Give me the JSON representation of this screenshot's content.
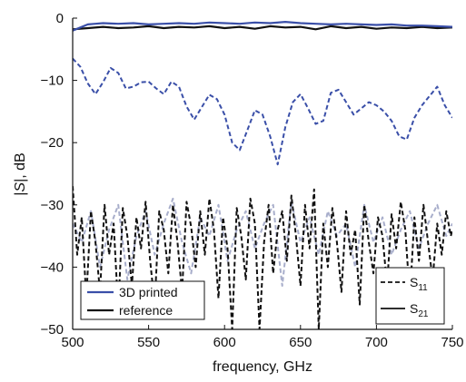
{
  "chart_data": {
    "type": "line",
    "xlabel": "frequency, GHz",
    "ylabel_parts": [
      "|",
      "S",
      "|, dB"
    ],
    "xlim": [
      500,
      750
    ],
    "ylim": [
      -50,
      0
    ],
    "x_ticks": [
      "500",
      "550",
      "600",
      "650",
      "700",
      "750"
    ],
    "x_tick_values": [
      500,
      550,
      600,
      650,
      700,
      750
    ],
    "y_ticks": [
      "0",
      "−10",
      "−20",
      "−30",
      "−40",
      "−50"
    ],
    "y_tick_values": [
      0,
      -10,
      -20,
      -30,
      -40,
      -50
    ],
    "grid": false,
    "colors": {
      "printed": "#3a4fa8",
      "reference": "#111111",
      "printed_s11_light": "#a8aecb",
      "reference_s11_light": "#9a9a9a"
    },
    "legend_color": {
      "placement": "bottom-left",
      "entries": [
        {
          "label": "3D printed",
          "color": "#3a4fa8"
        },
        {
          "label": "reference",
          "color": "#111111"
        }
      ]
    },
    "legend_style": {
      "placement": "bottom-right",
      "entries": [
        {
          "label": "S",
          "sub": "11",
          "dash": "dashed"
        },
        {
          "label": "S",
          "sub": "21",
          "dash": "solid"
        }
      ]
    },
    "series": [
      {
        "name": "3D printed S21",
        "color": "#3a4fa8",
        "dash": "solid",
        "x": [
          500,
          505,
          510,
          515,
          520,
          530,
          540,
          550,
          560,
          570,
          580,
          590,
          600,
          610,
          620,
          630,
          640,
          650,
          660,
          670,
          680,
          690,
          700,
          710,
          720,
          730,
          740,
          750
        ],
        "y": [
          -2.0,
          -1.5,
          -1.0,
          -0.9,
          -0.8,
          -0.9,
          -0.8,
          -1.0,
          -0.9,
          -0.8,
          -0.9,
          -0.7,
          -0.8,
          -0.9,
          -0.7,
          -0.8,
          -0.6,
          -0.8,
          -0.9,
          -1.0,
          -0.9,
          -1.0,
          -1.1,
          -1.0,
          -1.2,
          -1.2,
          -1.3,
          -1.4
        ]
      },
      {
        "name": "reference S21",
        "color": "#111111",
        "dash": "solid",
        "x": [
          500,
          510,
          520,
          530,
          540,
          550,
          560,
          570,
          580,
          590,
          600,
          610,
          620,
          630,
          640,
          650,
          660,
          670,
          680,
          690,
          700,
          710,
          720,
          730,
          740,
          750
        ],
        "y": [
          -1.8,
          -1.6,
          -1.4,
          -1.6,
          -1.5,
          -1.3,
          -1.6,
          -1.4,
          -1.5,
          -1.3,
          -1.6,
          -1.4,
          -1.7,
          -1.3,
          -1.5,
          -1.4,
          -1.8,
          -1.3,
          -1.6,
          -1.4,
          -1.7,
          -1.5,
          -1.6,
          -1.4,
          -1.6,
          -1.5
        ]
      },
      {
        "name": "3D printed S11",
        "color": "#3a4fa8",
        "dash": "dashed",
        "x": [
          500,
          505,
          510,
          515,
          520,
          525,
          530,
          535,
          540,
          545,
          550,
          555,
          560,
          565,
          570,
          575,
          580,
          585,
          590,
          595,
          600,
          605,
          610,
          615,
          620,
          625,
          630,
          635,
          640,
          645,
          650,
          655,
          660,
          665,
          670,
          675,
          680,
          685,
          690,
          695,
          700,
          705,
          710,
          715,
          720,
          725,
          730,
          735,
          740,
          745,
          750
        ],
        "y": [
          -6.5,
          -7.8,
          -10.5,
          -12.2,
          -10.3,
          -8.0,
          -8.8,
          -11.3,
          -11.0,
          -10.3,
          -10.2,
          -11.3,
          -12.2,
          -10.2,
          -11.0,
          -14.2,
          -16.3,
          -14.3,
          -12.3,
          -13.0,
          -15.5,
          -20.0,
          -21.2,
          -18.0,
          -14.8,
          -15.5,
          -19.0,
          -23.5,
          -17.5,
          -13.5,
          -12.2,
          -14.5,
          -17.0,
          -16.5,
          -12.0,
          -11.5,
          -13.5,
          -15.5,
          -14.5,
          -13.5,
          -14.0,
          -15.0,
          -16.5,
          -19.0,
          -19.5,
          -16.0,
          -14.0,
          -12.5,
          -11.0,
          -14.0,
          -16.0
        ]
      },
      {
        "name": "reference S11",
        "color": "#111111",
        "dash": "dashed",
        "x": [
          500,
          503,
          506,
          509,
          512,
          515,
          518,
          521,
          524,
          527,
          530,
          533,
          536,
          539,
          542,
          545,
          548,
          551,
          554,
          557,
          560,
          563,
          566,
          569,
          572,
          575,
          578,
          581,
          584,
          587,
          590,
          593,
          596,
          599,
          602,
          605,
          608,
          611,
          614,
          617,
          620,
          623,
          626,
          629,
          632,
          635,
          638,
          641,
          644,
          647,
          650,
          653,
          656,
          659,
          662,
          665,
          668,
          671,
          674,
          677,
          680,
          683,
          686,
          689,
          692,
          695,
          698,
          701,
          704,
          707,
          710,
          713,
          716,
          719,
          722,
          725,
          728,
          731,
          734,
          737,
          740,
          743,
          746,
          749,
          750
        ],
        "y": [
          -27.0,
          -38.0,
          -32.0,
          -45.0,
          -31.0,
          -36.0,
          -44.0,
          -30.0,
          -38.0,
          -33.0,
          -47.0,
          -30.5,
          -35.0,
          -43.0,
          -32.0,
          -37.0,
          -29.5,
          -39.0,
          -46.0,
          -31.0,
          -34.0,
          -41.0,
          -30.0,
          -36.0,
          -44.0,
          -29.5,
          -33.5,
          -40.0,
          -31.0,
          -38.0,
          -29.0,
          -34.0,
          -45.0,
          -32.0,
          -37.0,
          -50.0,
          -30.5,
          -35.0,
          -42.0,
          -29.0,
          -33.0,
          -50.0,
          -36.0,
          -30.0,
          -41.0,
          -34.0,
          -31.0,
          -39.0,
          -28.5,
          -35.0,
          -43.0,
          -30.0,
          -37.0,
          -27.5,
          -50.0,
          -33.0,
          -40.0,
          -30.5,
          -36.0,
          -44.0,
          -31.0,
          -38.0,
          -34.0,
          -46.0,
          -30.0,
          -36.0,
          -41.0,
          -32.0,
          -35.0,
          -43.0,
          -31.5,
          -37.0,
          -29.5,
          -34.0,
          -45.0,
          -32.0,
          -39.0,
          -30.0,
          -36.0,
          -42.0,
          -33.0,
          -38.0,
          -31.0,
          -35.0,
          -34.0
        ]
      },
      {
        "name": "3D printed S11 (overlap)",
        "color": "#a8aecb",
        "dash": "dashed",
        "x": [
          500,
          506,
          512,
          518,
          524,
          530,
          536,
          542,
          548,
          554,
          560,
          566,
          572,
          578,
          584,
          590,
          596,
          602,
          608,
          614,
          620,
          626,
          632,
          638,
          644,
          650,
          656,
          662,
          668,
          674,
          680,
          686,
          692,
          698,
          704,
          710,
          716,
          722,
          728,
          734,
          740,
          746,
          750
        ],
        "y": [
          -33.0,
          -36.0,
          -31.0,
          -40.0,
          -34.0,
          -30.0,
          -42.0,
          -35.0,
          -31.0,
          -38.0,
          -33.0,
          -29.0,
          -36.0,
          -41.0,
          -32.0,
          -35.0,
          -30.0,
          -39.0,
          -34.0,
          -31.0,
          -37.0,
          -33.0,
          -30.0,
          -43.0,
          -29.5,
          -36.0,
          -32.0,
          -38.0,
          -31.0,
          -35.0,
          -33.0,
          -40.0,
          -30.0,
          -36.0,
          -32.0,
          -38.0,
          -34.0,
          -31.0,
          -37.0,
          -33.0,
          -30.0,
          -35.0,
          -33.0
        ]
      }
    ]
  }
}
